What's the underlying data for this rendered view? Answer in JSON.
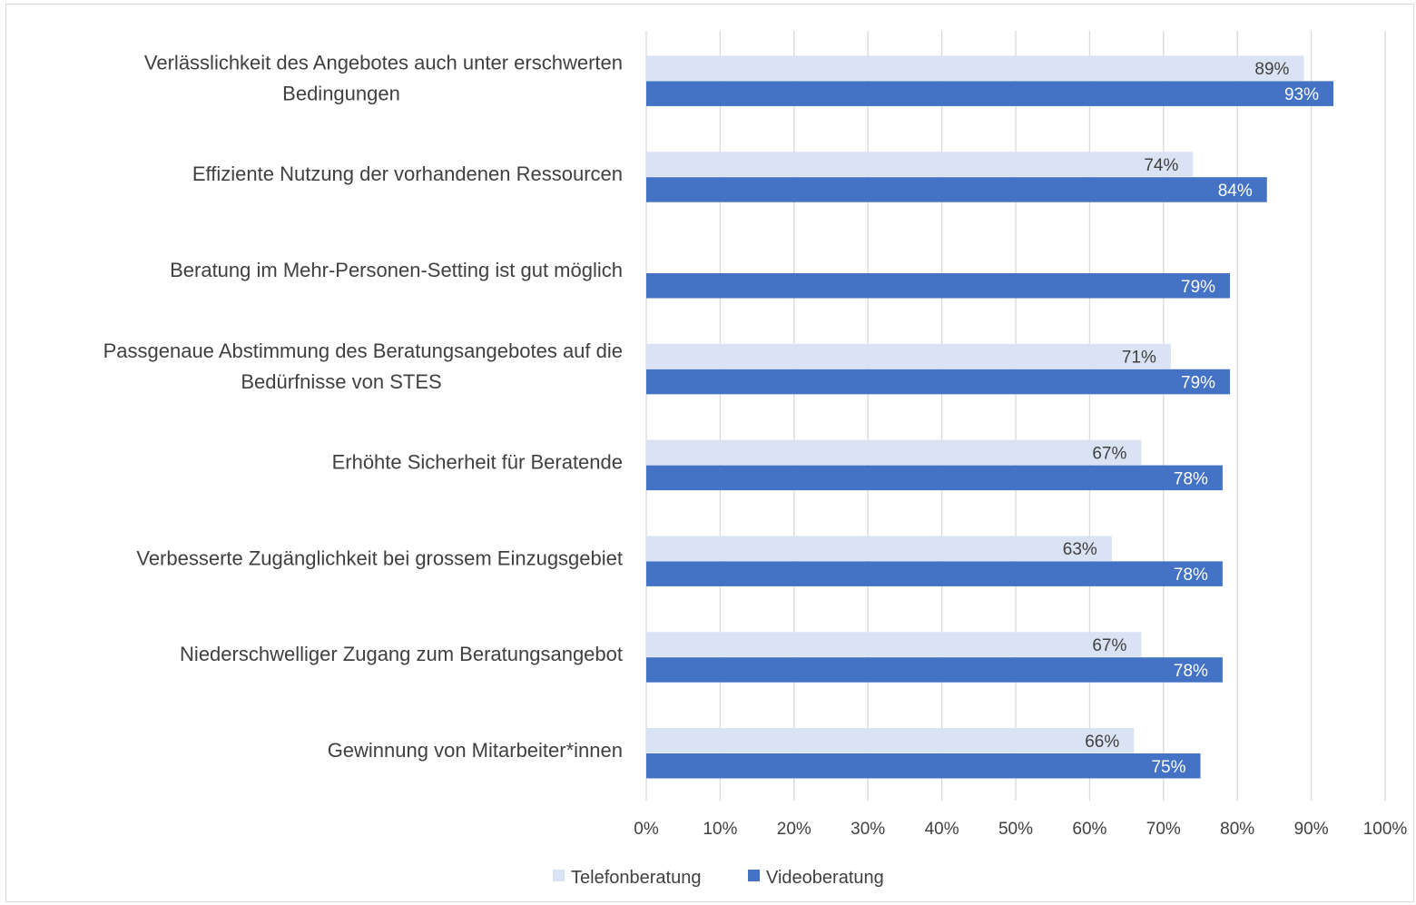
{
  "chart_data": {
    "type": "bar",
    "orientation": "horizontal",
    "categories": [
      "Verlässlichkeit des Angebotes auch unter erschwerten Bedingungen",
      "Effiziente Nutzung der vorhandenen Ressourcen",
      "Beratung im Mehr-Personen-Setting ist gut möglich",
      "Passgenaue Abstimmung des Beratungsangebotes auf die Bedürfnisse von STES",
      "Erhöhte Sicherheit für Beratende",
      "Verbesserte Zugänglichkeit bei grossem Einzugsgebiet",
      "Niederschwelliger Zugang zum Beratungsangebot",
      "Gewinnung von Mitarbeiter*innen"
    ],
    "category_lines": [
      [
        "Verlässlichkeit des Angebotes auch unter erschwerten",
        "Bedingungen"
      ],
      [
        "Effiziente Nutzung der vorhandenen Ressourcen"
      ],
      [
        "Beratung im Mehr-Personen-Setting ist gut möglich"
      ],
      [
        "Passgenaue Abstimmung des Beratungsangebotes auf die",
        "Bedürfnisse von STES"
      ],
      [
        "Erhöhte Sicherheit für Beratende"
      ],
      [
        "Verbesserte Zugänglichkeit bei grossem Einzugsgebiet"
      ],
      [
        "Niederschwelliger Zugang zum Beratungsangebot"
      ],
      [
        "Gewinnung von Mitarbeiter*innen"
      ]
    ],
    "series": [
      {
        "name": "Telefonberatung",
        "color": "#dae3f3",
        "label_color": "#404040",
        "values": [
          89,
          74,
          null,
          71,
          67,
          63,
          67,
          66
        ],
        "labels": [
          "89%",
          "74%",
          "",
          "71%",
          "67%",
          "63%",
          "67%",
          "66%"
        ]
      },
      {
        "name": "Videoberatung",
        "color": "#4472c4",
        "label_color": "#ffffff",
        "values": [
          93,
          84,
          79,
          79,
          78,
          78,
          78,
          75
        ],
        "labels": [
          "93%",
          "84%",
          "79%",
          "79%",
          "78%",
          "78%",
          "78%",
          "75%"
        ]
      }
    ],
    "xlim": [
      0,
      100
    ],
    "x_ticks": [
      "0%",
      "10%",
      "20%",
      "30%",
      "40%",
      "50%",
      "60%",
      "70%",
      "80%",
      "90%",
      "100%"
    ],
    "grid": "vertical",
    "legend": "bottom-center",
    "title": "",
    "xlabel": "",
    "ylabel": ""
  }
}
